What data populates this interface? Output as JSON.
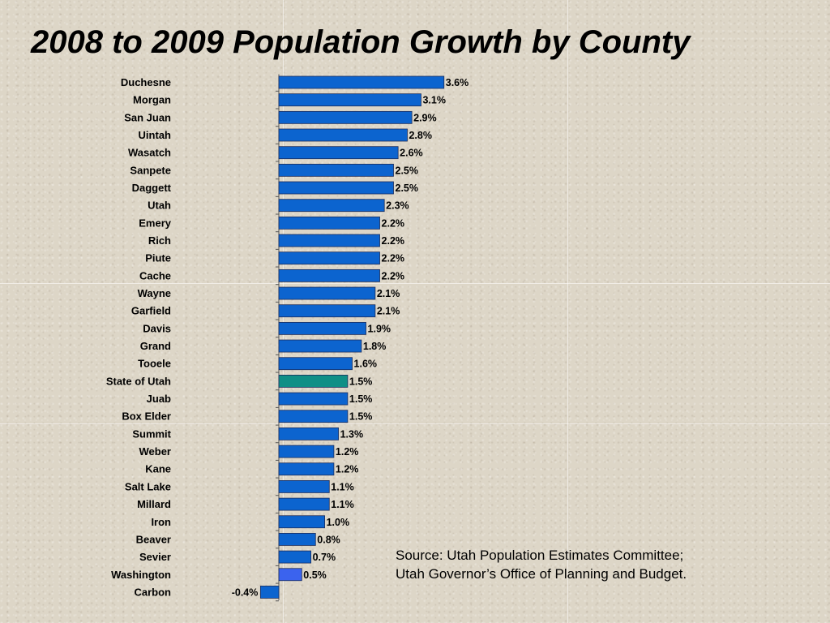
{
  "title": "2008 to 2009 Population Growth by County",
  "source": {
    "line1": "Source: Utah Population Estimates Committee;",
    "line2": "Utah Governor’s Office of Planning and Budget."
  },
  "colors": {
    "bar": "#0c64cf",
    "state_bar": "#0f8f86",
    "highlight_bar": "#3b63ee",
    "bar_stroke": "#1b2c5c"
  },
  "chart_data": {
    "type": "bar",
    "orientation": "horizontal",
    "title": "2008 to 2009 Population Growth by County",
    "xlim": [
      -0.4,
      3.6
    ],
    "unit": "%",
    "categories": [
      "Duchesne",
      "Morgan",
      "San Juan",
      "Uintah",
      "Wasatch",
      "Sanpete",
      "Daggett",
      "Utah",
      "Emery",
      "Rich",
      "Piute",
      "Cache",
      "Wayne",
      "Garfield",
      "Davis",
      "Grand",
      "Tooele",
      "State of Utah",
      "Juab",
      "Box Elder",
      "Summit",
      "Weber",
      "Kane",
      "Salt Lake",
      "Millard",
      "Iron",
      "Beaver",
      "Sevier",
      "Washington",
      "Carbon"
    ],
    "values": [
      3.6,
      3.1,
      2.9,
      2.8,
      2.6,
      2.5,
      2.5,
      2.3,
      2.2,
      2.2,
      2.2,
      2.2,
      2.1,
      2.1,
      1.9,
      1.8,
      1.6,
      1.5,
      1.5,
      1.5,
      1.3,
      1.2,
      1.2,
      1.1,
      1.1,
      1.0,
      0.8,
      0.7,
      0.5,
      -0.4
    ],
    "value_labels": [
      "3.6%",
      "3.1%",
      "2.9%",
      "2.8%",
      "2.6%",
      "2.5%",
      "2.5%",
      "2.3%",
      "2.2%",
      "2.2%",
      "2.2%",
      "2.2%",
      "2.1%",
      "2.1%",
      "1.9%",
      "1.8%",
      "1.6%",
      "1.5%",
      "1.5%",
      "1.5%",
      "1.3%",
      "1.2%",
      "1.2%",
      "1.1%",
      "1.1%",
      "1.0%",
      "0.8%",
      "0.7%",
      "0.5%",
      "-0.4%"
    ],
    "highlight": {
      "State of Utah": "state_bar",
      "Washington": "highlight_bar"
    }
  }
}
